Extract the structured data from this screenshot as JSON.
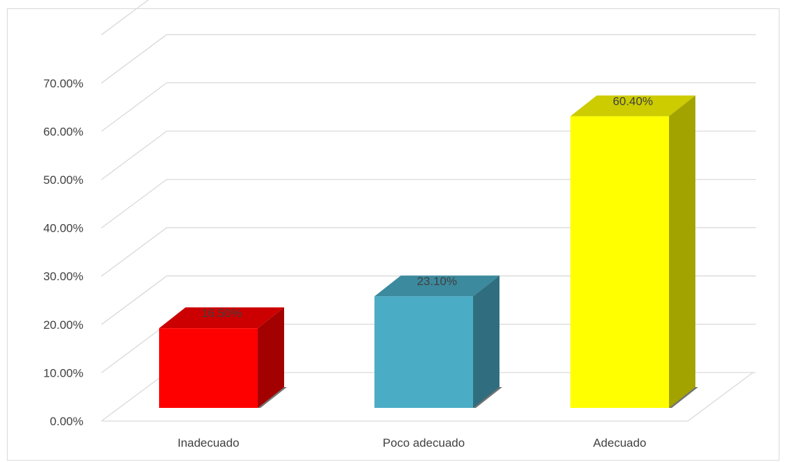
{
  "chart_data": {
    "type": "bar",
    "categories": [
      "Inadecuado",
      "Poco adecuado",
      "Adecuado"
    ],
    "values": [
      0.165,
      0.231,
      0.604
    ],
    "data_labels": [
      "16.50%",
      "23.10%",
      "60.40%"
    ],
    "colors": [
      "#ff0000",
      "#4bacc6",
      "#ffff00"
    ],
    "y_tick_labels": [
      "0.00%",
      "10.00%",
      "20.00%",
      "30.00%",
      "40.00%",
      "50.00%",
      "60.00%",
      "70.00%"
    ],
    "ylim": [
      0,
      0.7
    ],
    "grid": true,
    "style": "3d-column",
    "legend": "none"
  }
}
